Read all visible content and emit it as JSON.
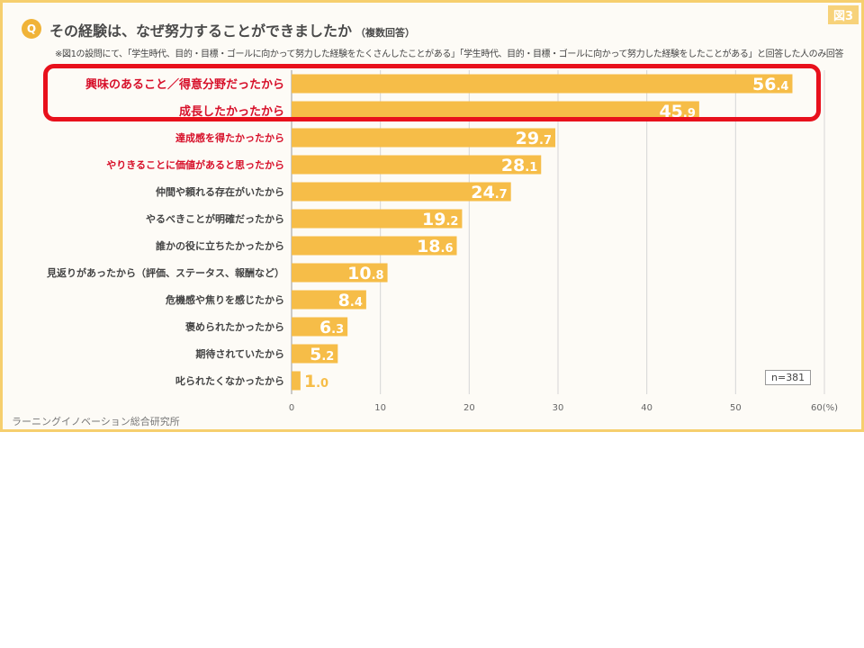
{
  "header": {
    "q_label": "Q",
    "title": "その経験は、なぜ努力することができましたか",
    "title_sub": "（複数回答）",
    "figure_tag": "図3",
    "note": "※図1の設問にて、「学生時代、目的・目標・ゴールに向かって努力した経験をたくさんしたことがある」「学生時代、目的・目標・ゴールに向かって努力した経験をしたことがある」と回答した人のみ回答"
  },
  "footer": {
    "source": "ラーニングイノベーション総合研究所"
  },
  "sample": {
    "n_label": "n=381"
  },
  "colors": {
    "bar": "#f6bd48",
    "bar_label": "#ffffff",
    "highlight_text": "#d7102a",
    "normal_text": "#444444",
    "highlight_border": "#e8101c"
  },
  "chart_data": {
    "type": "bar",
    "orientation": "horizontal",
    "categories": [
      "興味のあること／得意分野だったから",
      "成長したかったから",
      "達成感を得たかったから",
      "やりきることに価値があると思ったから",
      "仲間や頼れる存在がいたから",
      "やるべきことが明確だったから",
      "誰かの役に立ちたかったから",
      "見返りがあったから（評価、ステータス、報酬など）",
      "危機感や焦りを感じたから",
      "褒められたかったから",
      "期待されていたから",
      "叱られたくなかったから"
    ],
    "values": [
      56.4,
      45.9,
      29.7,
      28.1,
      24.7,
      19.2,
      18.6,
      10.8,
      8.4,
      6.3,
      5.2,
      1.0
    ],
    "emphasized": [
      true,
      true,
      true,
      true,
      false,
      false,
      false,
      false,
      false,
      false,
      false,
      false
    ],
    "xlim": [
      0,
      60
    ],
    "xticks": [
      "0",
      "10",
      "20",
      "30",
      "40",
      "50",
      "60(%)"
    ],
    "grid": true,
    "legend": "none"
  }
}
